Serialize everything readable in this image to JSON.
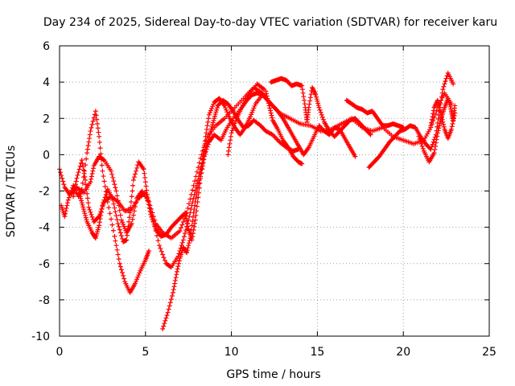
{
  "chart_data": {
    "type": "scatter",
    "title": "Day 234 of 2025, Sidereal Day-to-day VTEC variation (SDTVAR) for receiver karu",
    "xlabel": "GPS time / hours",
    "ylabel": "SDTVAR / TECUs",
    "xlim": [
      0,
      25
    ],
    "ylim": [
      -10,
      6
    ],
    "xticks": [
      0,
      5,
      10,
      15,
      20,
      25
    ],
    "xtick_labels": [
      "0",
      "5",
      "10",
      "15",
      "20",
      "25"
    ],
    "yticks": [
      -10,
      -8,
      -6,
      -4,
      -2,
      0,
      2,
      4,
      6
    ],
    "ytick_labels": [
      "-10",
      "-8",
      "-6",
      "-4",
      "-2",
      "0",
      "2",
      "4",
      "6"
    ],
    "grid": true,
    "legend": "none",
    "marker": "plus",
    "color": "#ff0000",
    "series": [
      {
        "points": [
          [
            0.0,
            -0.8
          ],
          [
            0.3,
            -1.8
          ],
          [
            0.6,
            -2.2
          ],
          [
            1.0,
            -1.8
          ],
          [
            1.4,
            -2.1
          ],
          [
            1.8,
            -1.5
          ],
          [
            2.0,
            -0.6
          ],
          [
            2.3,
            -0.1
          ],
          [
            2.6,
            -0.3
          ],
          [
            3.0,
            -0.9
          ],
          [
            3.3,
            -2.0
          ],
          [
            3.6,
            -3.6
          ],
          [
            3.9,
            -4.3
          ],
          [
            4.2,
            -3.8
          ],
          [
            4.5,
            -2.4
          ],
          [
            4.8,
            -2.0
          ],
          [
            5.2,
            -2.6
          ],
          [
            5.6,
            -3.8
          ],
          [
            6.0,
            -4.3
          ],
          [
            6.5,
            -4.6
          ],
          [
            7.0,
            -4.2
          ],
          [
            7.4,
            -3.2
          ],
          [
            7.8,
            -1.7
          ],
          [
            8.2,
            -0.2
          ],
          [
            8.6,
            1.0
          ],
          [
            9.1,
            1.6
          ],
          [
            9.6,
            2.0
          ],
          [
            10.2,
            2.6
          ],
          [
            10.8,
            3.2
          ],
          [
            11.3,
            3.7
          ],
          [
            11.8,
            3.4
          ],
          [
            12.3,
            2.8
          ],
          [
            12.8,
            2.3
          ],
          [
            13.4,
            2.0
          ],
          [
            14.0,
            1.7
          ],
          [
            14.6,
            1.6
          ],
          [
            15.2,
            1.3
          ],
          [
            15.8,
            1.4
          ],
          [
            16.4,
            1.7
          ],
          [
            17.0,
            2.0
          ],
          [
            17.6,
            1.5
          ],
          [
            18.2,
            1.3
          ],
          [
            18.8,
            1.5
          ],
          [
            19.4,
            1.0
          ],
          [
            20.0,
            0.8
          ],
          [
            20.6,
            0.6
          ],
          [
            21.2,
            0.8
          ],
          [
            21.6,
            1.5
          ],
          [
            22.0,
            2.6
          ],
          [
            22.4,
            3.4
          ],
          [
            22.8,
            2.8
          ]
        ]
      },
      {
        "points": [
          [
            0.1,
            -2.8
          ],
          [
            0.3,
            -3.4
          ],
          [
            0.5,
            -2.5
          ],
          [
            0.8,
            -1.7
          ],
          [
            1.1,
            -2.3
          ],
          [
            1.3,
            -1.9
          ],
          [
            1.6,
            0.1
          ],
          [
            1.8,
            1.3
          ],
          [
            2.1,
            2.4
          ],
          [
            2.3,
            1.0
          ],
          [
            2.5,
            -0.9
          ],
          [
            2.8,
            -2.6
          ],
          [
            3.2,
            -4.5
          ],
          [
            3.5,
            -6.0
          ],
          [
            3.8,
            -7.0
          ],
          [
            4.1,
            -7.6
          ],
          [
            4.4,
            -7.1
          ],
          [
            4.7,
            -6.4
          ],
          [
            5.0,
            -5.8
          ],
          [
            5.2,
            -5.3
          ]
        ]
      },
      {
        "points": [
          [
            0.8,
            -2.3
          ],
          [
            1.0,
            -1.3
          ],
          [
            1.3,
            -0.3
          ],
          [
            1.5,
            -1.4
          ],
          [
            1.7,
            -2.9
          ],
          [
            2.0,
            -3.7
          ],
          [
            2.3,
            -3.4
          ],
          [
            2.6,
            -2.6
          ],
          [
            3.0,
            -2.3
          ],
          [
            3.4,
            -2.6
          ],
          [
            3.8,
            -3.1
          ],
          [
            4.2,
            -3.0
          ],
          [
            4.6,
            -2.4
          ],
          [
            5.0,
            -2.1
          ],
          [
            5.4,
            -3.4
          ],
          [
            5.8,
            -5.0
          ],
          [
            6.2,
            -6.0
          ],
          [
            6.5,
            -6.2
          ],
          [
            6.9,
            -5.6
          ],
          [
            7.2,
            -4.7
          ],
          [
            7.5,
            -3.6
          ],
          [
            7.8,
            -2.4
          ],
          [
            8.1,
            -1.2
          ],
          [
            8.4,
            -0.1
          ],
          [
            8.7,
            0.7
          ],
          [
            9.0,
            1.1
          ],
          [
            9.4,
            0.8
          ],
          [
            9.7,
            1.4
          ],
          [
            10.1,
            2.0
          ],
          [
            10.6,
            2.6
          ],
          [
            11.0,
            3.3
          ],
          [
            11.5,
            3.9
          ],
          [
            11.9,
            3.6
          ]
        ]
      },
      {
        "points": [
          [
            1.2,
            -2.3
          ],
          [
            1.4,
            -3.0
          ],
          [
            1.6,
            -3.7
          ],
          [
            1.9,
            -4.3
          ],
          [
            2.1,
            -4.6
          ],
          [
            2.3,
            -3.9
          ],
          [
            2.5,
            -2.8
          ],
          [
            2.8,
            -1.9
          ],
          [
            3.1,
            -2.5
          ],
          [
            3.4,
            -3.8
          ],
          [
            3.7,
            -4.8
          ],
          [
            3.9,
            -4.7
          ],
          [
            4.1,
            -3.2
          ],
          [
            4.3,
            -1.4
          ],
          [
            4.6,
            -0.4
          ],
          [
            4.9,
            -0.8
          ],
          [
            5.1,
            -2.2
          ],
          [
            5.3,
            -3.3
          ],
          [
            5.6,
            -4.1
          ],
          [
            5.9,
            -4.5
          ],
          [
            6.2,
            -4.4
          ],
          [
            6.5,
            -4.0
          ],
          [
            6.8,
            -3.7
          ],
          [
            7.1,
            -3.4
          ],
          [
            7.4,
            -3.2
          ]
        ]
      },
      {
        "points": [
          [
            6.0,
            -9.6
          ],
          [
            6.3,
            -8.7
          ],
          [
            6.6,
            -7.6
          ],
          [
            6.8,
            -6.6
          ],
          [
            7.0,
            -5.7
          ],
          [
            7.2,
            -5.1
          ],
          [
            7.4,
            -5.4
          ],
          [
            7.6,
            -4.6
          ],
          [
            7.8,
            -3.2
          ],
          [
            8.0,
            -2.0
          ],
          [
            8.3,
            -0.8
          ],
          [
            8.5,
            0.3
          ],
          [
            8.8,
            1.3
          ],
          [
            9.0,
            2.0
          ],
          [
            9.2,
            2.7
          ],
          [
            9.5,
            3.0
          ],
          [
            9.8,
            2.8
          ],
          [
            10.1,
            2.4
          ],
          [
            10.4,
            1.9
          ],
          [
            10.7,
            1.5
          ],
          [
            11.0,
            1.6
          ],
          [
            11.3,
            1.9
          ],
          [
            11.7,
            1.6
          ],
          [
            12.0,
            1.3
          ],
          [
            12.4,
            1.1
          ],
          [
            12.8,
            0.7
          ],
          [
            13.2,
            0.4
          ],
          [
            13.6,
            0.2
          ],
          [
            13.9,
            0.3
          ]
        ]
      },
      {
        "points": [
          [
            7.3,
            -3.2
          ],
          [
            7.5,
            -4.1
          ],
          [
            7.7,
            -4.7
          ],
          [
            7.9,
            -3.6
          ],
          [
            8.1,
            -2.1
          ],
          [
            8.3,
            -0.5
          ],
          [
            8.5,
            1.0
          ],
          [
            8.7,
            2.2
          ],
          [
            9.0,
            2.9
          ],
          [
            9.3,
            3.1
          ],
          [
            9.6,
            2.7
          ],
          [
            9.9,
            2.0
          ],
          [
            10.2,
            1.5
          ],
          [
            10.5,
            1.1
          ],
          [
            10.8,
            1.5
          ],
          [
            11.1,
            2.1
          ],
          [
            11.4,
            2.8
          ],
          [
            11.8,
            3.3
          ]
        ]
      },
      {
        "points": [
          [
            9.8,
            0.0
          ],
          [
            10.0,
            1.2
          ],
          [
            10.3,
            2.0
          ],
          [
            10.6,
            2.6
          ],
          [
            10.9,
            3.0
          ],
          [
            11.2,
            3.3
          ],
          [
            11.5,
            3.4
          ],
          [
            11.8,
            3.3
          ],
          [
            12.1,
            3.0
          ],
          [
            12.4,
            2.7
          ],
          [
            12.7,
            2.4
          ],
          [
            13.0,
            2.0
          ],
          [
            13.3,
            1.5
          ],
          [
            13.6,
            1.0
          ],
          [
            13.9,
            0.5
          ],
          [
            14.2,
            0.0
          ],
          [
            14.5,
            0.4
          ],
          [
            14.8,
            1.0
          ],
          [
            15.1,
            1.6
          ],
          [
            15.4,
            1.3
          ],
          [
            15.7,
            1.1
          ],
          [
            16.0,
            1.5
          ],
          [
            16.3,
            1.4
          ],
          [
            16.6,
            0.9
          ],
          [
            16.9,
            0.4
          ],
          [
            17.2,
            -0.1
          ]
        ]
      },
      {
        "points": [
          [
            12.3,
            4.0
          ],
          [
            12.6,
            4.1
          ],
          [
            12.9,
            4.2
          ],
          [
            13.2,
            4.1
          ],
          [
            13.5,
            3.8
          ],
          [
            13.8,
            3.9
          ],
          [
            14.1,
            3.8
          ],
          [
            14.3,
            2.6
          ],
          [
            14.4,
            1.8
          ],
          [
            14.5,
            2.6
          ],
          [
            14.7,
            3.7
          ],
          [
            14.9,
            3.3
          ],
          [
            15.1,
            2.6
          ],
          [
            15.4,
            1.8
          ],
          [
            15.7,
            1.3
          ],
          [
            16.0,
            1.0
          ],
          [
            16.3,
            1.3
          ],
          [
            16.6,
            1.6
          ],
          [
            16.9,
            1.9
          ],
          [
            17.2,
            2.0
          ],
          [
            17.5,
            1.7
          ],
          [
            17.8,
            1.4
          ],
          [
            18.1,
            1.1
          ]
        ]
      },
      {
        "points": [
          [
            12.0,
            3.5
          ],
          [
            12.2,
            2.7
          ],
          [
            12.4,
            1.9
          ],
          [
            12.7,
            1.4
          ],
          [
            13.0,
            0.8
          ],
          [
            13.3,
            0.4
          ],
          [
            13.6,
            -0.1
          ],
          [
            13.9,
            -0.4
          ],
          [
            14.1,
            -0.5
          ]
        ]
      },
      {
        "points": [
          [
            16.7,
            3.0
          ],
          [
            17.0,
            2.8
          ],
          [
            17.3,
            2.6
          ],
          [
            17.6,
            2.5
          ],
          [
            17.9,
            2.3
          ],
          [
            18.2,
            2.4
          ],
          [
            18.5,
            2.0
          ],
          [
            18.8,
            1.6
          ],
          [
            19.1,
            1.6
          ],
          [
            19.4,
            1.7
          ],
          [
            19.7,
            1.6
          ],
          [
            20.0,
            1.5
          ]
        ]
      },
      {
        "points": [
          [
            18.0,
            -0.7
          ],
          [
            18.3,
            -0.4
          ],
          [
            18.6,
            -0.1
          ],
          [
            18.9,
            0.3
          ],
          [
            19.2,
            0.7
          ],
          [
            19.5,
            1.0
          ],
          [
            19.8,
            1.3
          ],
          [
            20.1,
            1.4
          ],
          [
            20.4,
            1.6
          ],
          [
            20.7,
            1.5
          ],
          [
            21.0,
            1.0
          ],
          [
            21.3,
            0.6
          ],
          [
            21.6,
            0.3
          ],
          [
            21.9,
            1.1
          ],
          [
            22.1,
            2.4
          ],
          [
            22.3,
            3.6
          ],
          [
            22.6,
            4.5
          ],
          [
            22.9,
            3.9
          ]
        ]
      },
      {
        "points": [
          [
            20.9,
            1.0
          ],
          [
            21.2,
            0.2
          ],
          [
            21.5,
            -0.4
          ],
          [
            21.8,
            0.1
          ],
          [
            22.0,
            1.2
          ],
          [
            22.2,
            2.0
          ],
          [
            22.4,
            2.6
          ],
          [
            22.6,
            3.1
          ],
          [
            22.8,
            2.4
          ],
          [
            22.9,
            1.9
          ],
          [
            23.0,
            2.7
          ]
        ]
      },
      {
        "points": [
          [
            21.6,
            1.6
          ],
          [
            21.8,
            2.6
          ],
          [
            22.0,
            3.0
          ],
          [
            22.2,
            2.2
          ],
          [
            22.4,
            1.4
          ],
          [
            22.6,
            0.9
          ],
          [
            22.8,
            1.4
          ],
          [
            23.0,
            2.3
          ]
        ]
      }
    ]
  }
}
